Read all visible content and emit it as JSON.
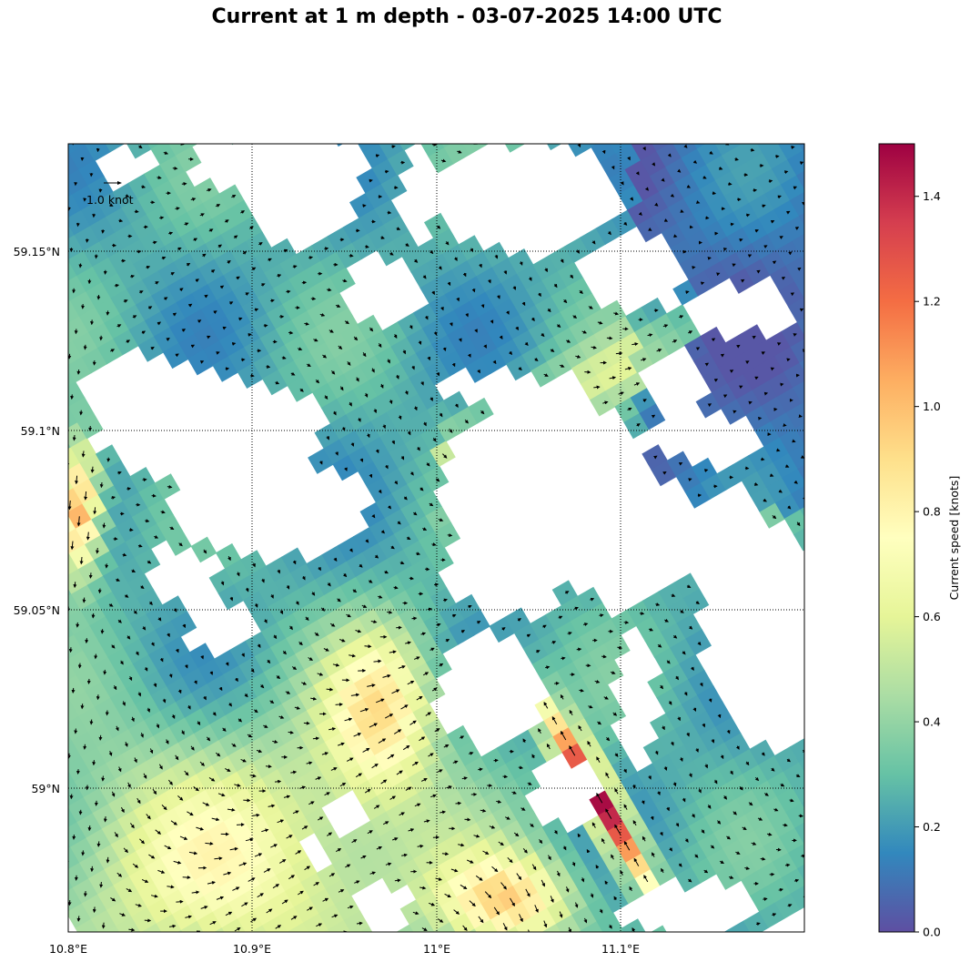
{
  "title": "Current at 1 m depth - 03-07-2025 14:00 UTC",
  "map": {
    "lon_ticks": [
      "10.8°E",
      "10.9°E",
      "11°E",
      "11.1°E"
    ],
    "lat_ticks": [
      "59.15°N",
      "59.1°N",
      "59.05°N",
      "59°N"
    ],
    "reference_arrow_label": "1.0 knot",
    "lon_range": [
      10.8,
      11.2
    ],
    "lat_range": [
      58.96,
      59.18
    ],
    "grid": "dotted"
  },
  "colorbar": {
    "label": "Current speed [knots]",
    "range": [
      0.0,
      1.5
    ],
    "ticks": [
      "0.0",
      "0.2",
      "0.4",
      "0.6",
      "0.8",
      "1.0",
      "1.2",
      "1.4"
    ],
    "colormap": "Spectral_r"
  },
  "colors": {
    "low": "#5e4fa2",
    "blue": "#3288bd",
    "teal": "#66c2a5",
    "lightgreen": "#abdda4",
    "yellowgreen": "#e6f598",
    "paleyellow": "#ffffbf",
    "lightorange": "#fee08b",
    "orange": "#fdae61",
    "darkorange": "#f46d43",
    "red": "#d53e4f",
    "high": "#9e0142"
  }
}
